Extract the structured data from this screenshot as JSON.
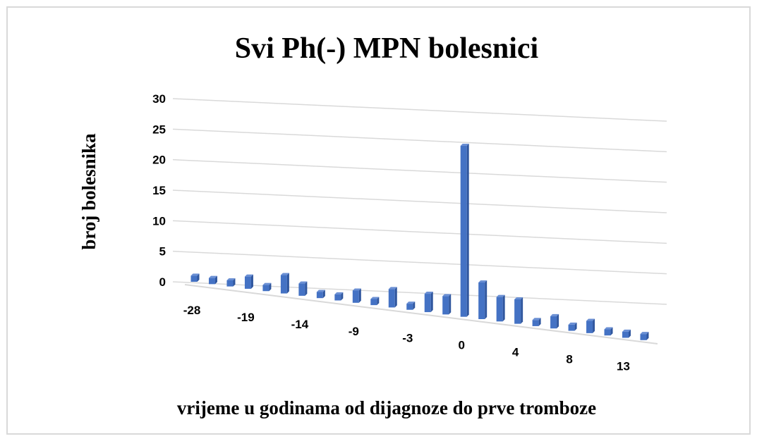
{
  "chart_data": {
    "type": "bar3d",
    "title": "Svi Ph(-) MPN bolesnici",
    "x_label": "vrijeme u godinama od dijagnoze do prve tromboze",
    "y_label": "broj bolesnika",
    "categories": [
      "-28",
      null,
      null,
      "-19",
      null,
      null,
      "-14",
      null,
      null,
      "-9",
      null,
      null,
      "-3",
      null,
      null,
      "0",
      null,
      null,
      "4",
      null,
      null,
      "8",
      null,
      null,
      "13",
      null
    ],
    "values": [
      1,
      1,
      1,
      2,
      1,
      3,
      2,
      1,
      1,
      2,
      1,
      3,
      1,
      3,
      3,
      28,
      6,
      4,
      4,
      1,
      2,
      1,
      2,
      1,
      1,
      1
    ],
    "color": "#4472c4",
    "ylim": [
      0,
      30
    ],
    "yticks": [
      0,
      5,
      10,
      15,
      20,
      25,
      30
    ],
    "grid": true
  }
}
